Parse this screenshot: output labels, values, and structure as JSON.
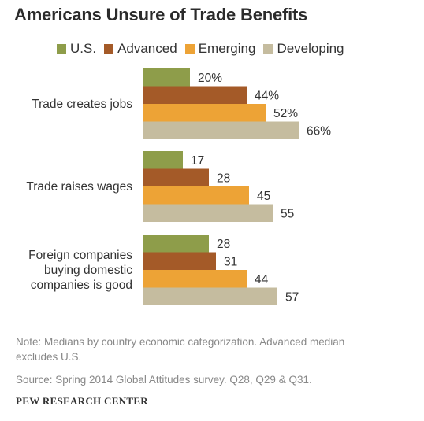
{
  "chart_data": {
    "type": "bar",
    "orientation": "horizontal",
    "title": "Americans Unsure of Trade Benefits",
    "categories": [
      "Trade creates jobs",
      "Trade raises wages",
      "Foreign companies buying domestic companies is good"
    ],
    "category_lines": [
      [
        "Trade creates jobs"
      ],
      [
        "Trade raises wages"
      ],
      [
        "Foreign companies",
        "buying domestic",
        "companies is good"
      ]
    ],
    "series": [
      {
        "name": "U.S.",
        "color": "#8e9d4a",
        "values": [
          20,
          17,
          28
        ],
        "labels": [
          "20%",
          "17",
          "28"
        ]
      },
      {
        "name": "Advanced",
        "color": "#a45a28",
        "values": [
          44,
          28,
          31
        ],
        "labels": [
          "44%",
          "28",
          "31"
        ]
      },
      {
        "name": "Emerging",
        "color": "#eda336",
        "values": [
          52,
          45,
          44
        ],
        "labels": [
          "52%",
          "45",
          "44"
        ]
      },
      {
        "name": "Developing",
        "color": "#c5bc9f",
        "values": [
          66,
          55,
          57
        ],
        "labels": [
          "66%",
          "55",
          "57"
        ]
      }
    ],
    "legend_position": "top",
    "grid": false
  },
  "note": "Note: Medians by country economic categorization. Advanced median excludes U.S.",
  "source": "Source: Spring 2014 Global Attitudes survey. Q28, Q29 & Q31.",
  "credit": "PEW RESEARCH CENTER"
}
